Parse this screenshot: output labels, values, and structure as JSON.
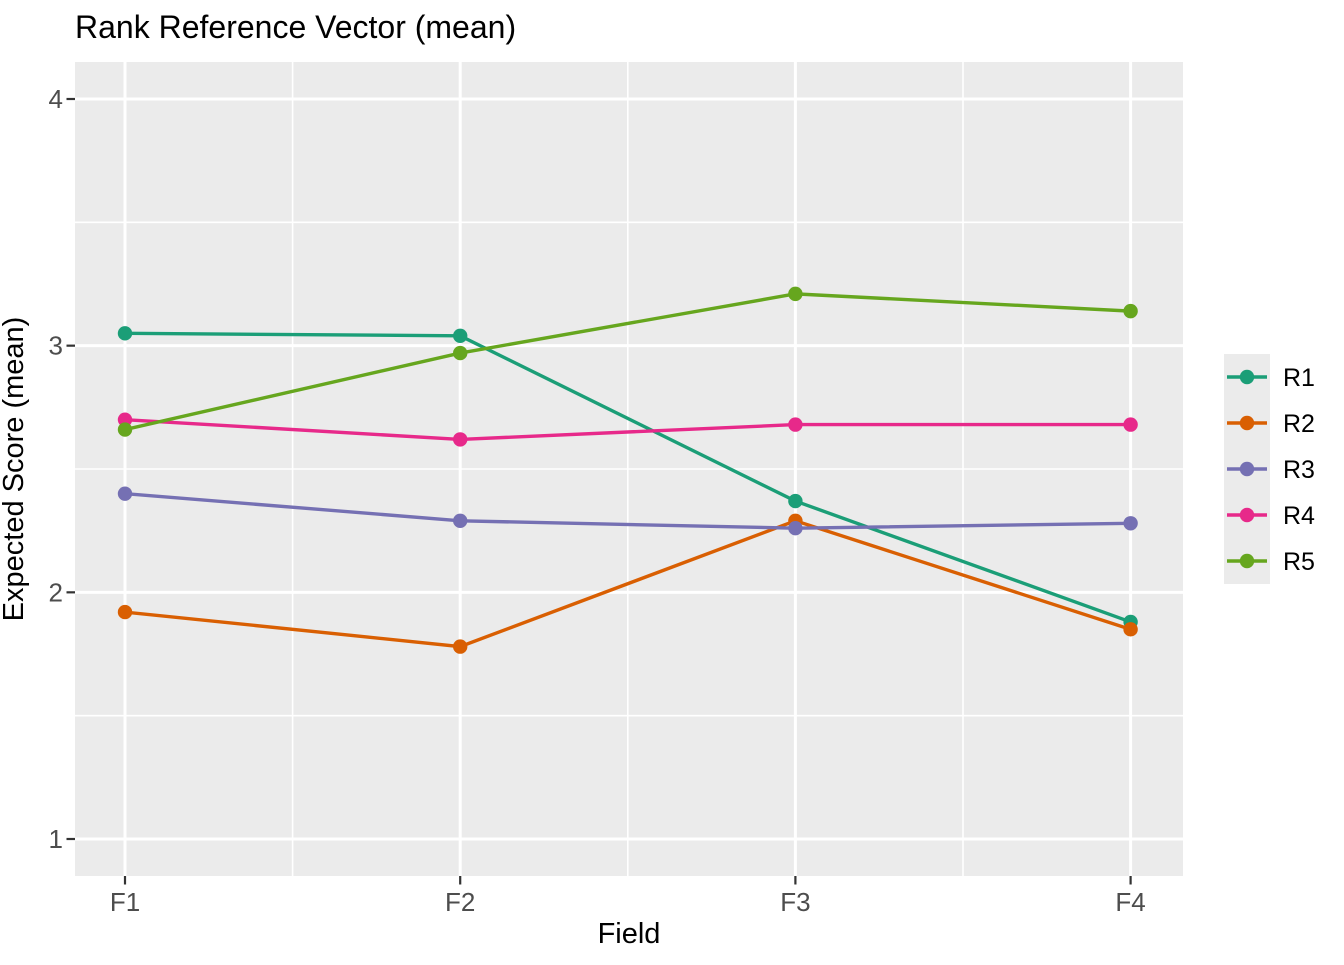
{
  "chart_data": {
    "type": "line",
    "title": "Rank Reference Vector (mean)",
    "xlabel": "Field",
    "ylabel": "Expected Score (mean)",
    "categories": [
      "F1",
      "F2",
      "F3",
      "F4"
    ],
    "y_ticks": [
      "1",
      "2",
      "3",
      "4"
    ],
    "y_tick_values": [
      1,
      2,
      3,
      4
    ],
    "ylim": [
      0.85,
      4.15
    ],
    "grid": "white major and minor gridlines on gray panel",
    "legend_position": "right",
    "series": [
      {
        "name": "R1",
        "color": "#1B9E77",
        "values": [
          3.05,
          3.04,
          2.37,
          1.88
        ]
      },
      {
        "name": "R2",
        "color": "#D95F02",
        "values": [
          1.92,
          1.78,
          2.29,
          1.85
        ]
      },
      {
        "name": "R3",
        "color": "#7570B3",
        "values": [
          2.4,
          2.29,
          2.26,
          2.28
        ]
      },
      {
        "name": "R4",
        "color": "#E7298A",
        "values": [
          2.7,
          2.62,
          2.68,
          2.68
        ]
      },
      {
        "name": "R5",
        "color": "#66A61E",
        "values": [
          2.66,
          2.97,
          3.21,
          3.14
        ]
      }
    ],
    "colors": {
      "panel_background": "#EBEBEB",
      "gridline": "#FFFFFF",
      "tick_mark": "#333333",
      "tick_label": "#4D4D4D",
      "text": "#000000",
      "figure_background": "#FFFFFF"
    }
  }
}
